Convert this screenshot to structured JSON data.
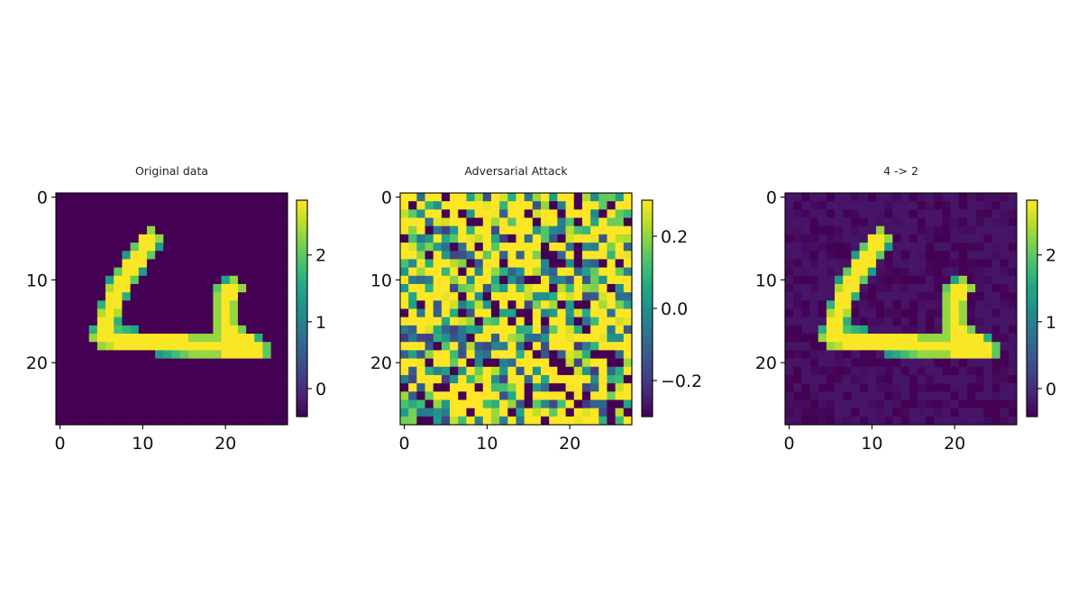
{
  "chart_data": [
    {
      "type": "heatmap",
      "title": "Original data",
      "xlabel": "",
      "ylabel": "",
      "xlim": [
        0,
        27
      ],
      "ylim": [
        27,
        0
      ],
      "xticks": [
        0,
        10,
        20
      ],
      "yticks": [
        0,
        10,
        20
      ],
      "colormap": "viridis",
      "vmin": -0.42,
      "vmax": 2.82,
      "colorbar_ticks": [
        0,
        1,
        2
      ],
      "grid": false
    },
    {
      "type": "heatmap",
      "title": "Adversarial Attack",
      "xlabel": "",
      "ylabel": "",
      "xlim": [
        0,
        27
      ],
      "ylim": [
        27,
        0
      ],
      "xticks": [
        0,
        10,
        20
      ],
      "yticks": [
        0,
        10,
        20
      ],
      "colormap": "viridis",
      "vmin": -0.3,
      "vmax": 0.3,
      "colorbar_ticks": [
        0.2,
        0.0,
        -0.2
      ],
      "colorbar_tick_labels": [
        "0.2",
        "0.0",
        "−0.2"
      ],
      "grid": false
    },
    {
      "type": "heatmap",
      "title": "4 -> 2",
      "xlabel": "",
      "ylabel": "",
      "xlim": [
        0,
        27
      ],
      "ylim": [
        27,
        0
      ],
      "xticks": [
        0,
        10,
        20
      ],
      "yticks": [
        0,
        10,
        20
      ],
      "colormap": "viridis",
      "vmin": -0.42,
      "vmax": 2.82,
      "colorbar_ticks": [
        0,
        1,
        2
      ],
      "grid": false
    }
  ]
}
